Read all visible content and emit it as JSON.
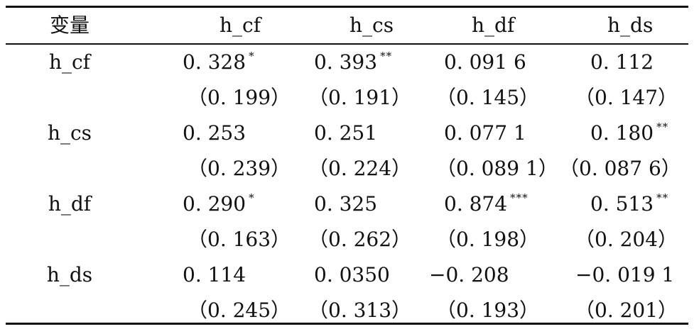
{
  "table": {
    "headers": [
      "变量",
      "h_cf",
      "h_cs",
      "h_df",
      "h_ds"
    ],
    "rows": [
      {
        "label": "h_cf",
        "values": [
          {
            "v": "0. 328",
            "stars": "*"
          },
          {
            "v": "0. 393",
            "stars": "**"
          },
          {
            "v": "0. 091 6",
            "stars": ""
          },
          {
            "v": "0. 112",
            "stars": ""
          }
        ],
        "se": [
          "（0. 199）",
          "（0. 191）",
          "（0. 145）",
          "（0. 147）"
        ]
      },
      {
        "label": "h_cs",
        "values": [
          {
            "v": "0. 253",
            "stars": ""
          },
          {
            "v": "0. 251",
            "stars": ""
          },
          {
            "v": "0. 077 1",
            "stars": ""
          },
          {
            "v": "0. 180",
            "stars": "**"
          }
        ],
        "se": [
          "（0. 239）",
          "（0. 224）",
          "（0. 089 1）",
          "（0. 087 6）"
        ]
      },
      {
        "label": "h_df",
        "values": [
          {
            "v": "0. 290",
            "stars": "*"
          },
          {
            "v": "0. 325",
            "stars": ""
          },
          {
            "v": "0. 874",
            "stars": "***"
          },
          {
            "v": "0. 513",
            "stars": "**"
          }
        ],
        "se": [
          "（0. 163）",
          "（0. 262）",
          "（0. 198）",
          "（0. 204）"
        ]
      },
      {
        "label": "h_ds",
        "values": [
          {
            "v": "0. 114",
            "stars": ""
          },
          {
            "v": "0. 0350",
            "stars": ""
          },
          {
            "v": "−0. 208",
            "stars": ""
          },
          {
            "v": "−0. 019 1",
            "stars": ""
          }
        ],
        "se": [
          "（0. 245）",
          "（0. 313）",
          "（0. 193）",
          "（0. 201）"
        ]
      }
    ]
  }
}
